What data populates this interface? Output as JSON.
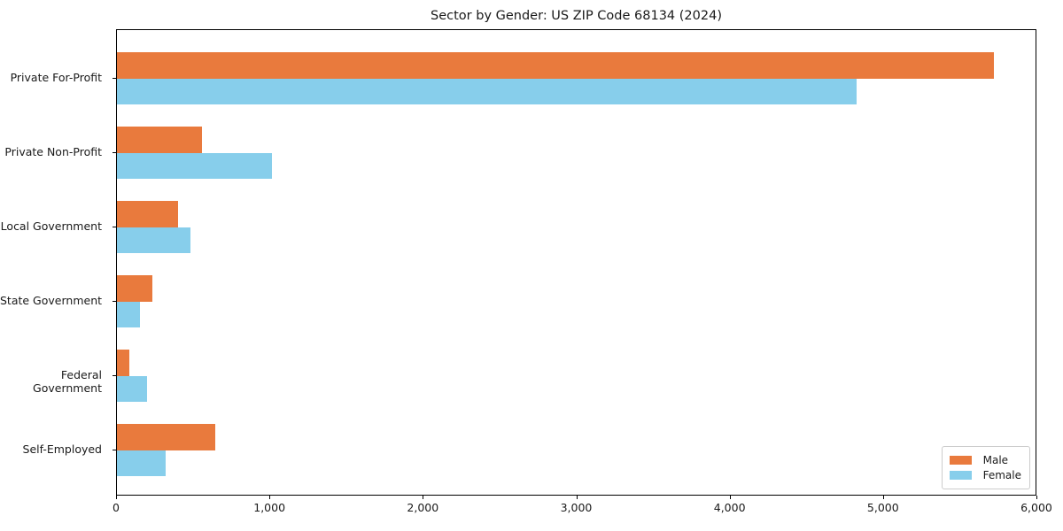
{
  "chart_data": {
    "type": "bar",
    "orientation": "horizontal",
    "title": "Sector by Gender: US ZIP Code 68134 (2024)",
    "categories": [
      "Private For-Profit",
      "Private Non-Profit",
      "Local Government",
      "State Government",
      "Federal Government",
      "Self-Employed"
    ],
    "series": [
      {
        "name": "Male",
        "color": "#e97a3d",
        "values": [
          5730,
          555,
          400,
          230,
          80,
          645
        ]
      },
      {
        "name": "Female",
        "color": "#87ceeb",
        "values": [
          4830,
          1010,
          480,
          150,
          195,
          320
        ]
      }
    ],
    "xlabel": "",
    "ylabel": "",
    "xlim": [
      0,
      6000
    ],
    "x_ticks": [
      0,
      1000,
      2000,
      3000,
      4000,
      5000,
      6000
    ],
    "x_tick_labels": [
      "0",
      "1,000",
      "2,000",
      "3,000",
      "4,000",
      "5,000",
      "6,000"
    ],
    "grid": false,
    "legend_position": "lower right",
    "legend_labels": [
      "Male",
      "Female"
    ]
  },
  "style": {
    "axis_color": "#000000",
    "text_color": "#1a1a1a",
    "legend_border_color": "#cccccc",
    "background_color": "#ffffff"
  }
}
